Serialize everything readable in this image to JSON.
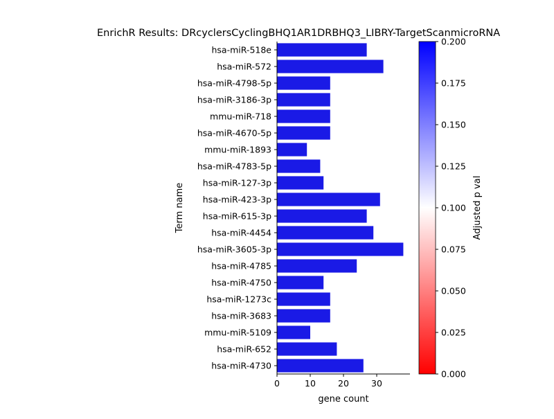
{
  "chart_data": {
    "type": "bar",
    "orientation": "horizontal",
    "title": "EnrichR Results: DRcyclersCyclingBHQ1AR1DRBHQ3_LIBRY-TargetScanmicroRNA",
    "xlabel": "gene count",
    "ylabel": "Term name",
    "xlim": [
      0,
      40
    ],
    "x_ticks": [
      0,
      10,
      20,
      30
    ],
    "grid": false,
    "bar_color": "#1a1ae6",
    "categories": [
      "hsa-miR-518e",
      "hsa-miR-572",
      "hsa-miR-4798-5p",
      "hsa-miR-3186-3p",
      "mmu-miR-718",
      "hsa-miR-4670-5p",
      "mmu-miR-1893",
      "hsa-miR-4783-5p",
      "hsa-miR-127-3p",
      "hsa-miR-423-3p",
      "hsa-miR-615-3p",
      "hsa-miR-4454",
      "hsa-miR-3605-3p",
      "hsa-miR-4785",
      "hsa-miR-4750",
      "hsa-miR-1273c",
      "hsa-miR-3683",
      "mmu-miR-5109",
      "hsa-miR-652",
      "hsa-miR-4730"
    ],
    "values": [
      27,
      32,
      16,
      16,
      16,
      16,
      9,
      13,
      14,
      31,
      27,
      29,
      38,
      24,
      14,
      16,
      16,
      10,
      18,
      26
    ],
    "colorbar": {
      "label": "Adjusted p val",
      "range": [
        0,
        0.2
      ],
      "ticks": [
        "0.000",
        "0.025",
        "0.050",
        "0.075",
        "0.100",
        "0.125",
        "0.150",
        "0.175",
        "0.200"
      ],
      "colors": [
        "#ff0000",
        "#ffffff",
        "#0000ff"
      ]
    }
  }
}
